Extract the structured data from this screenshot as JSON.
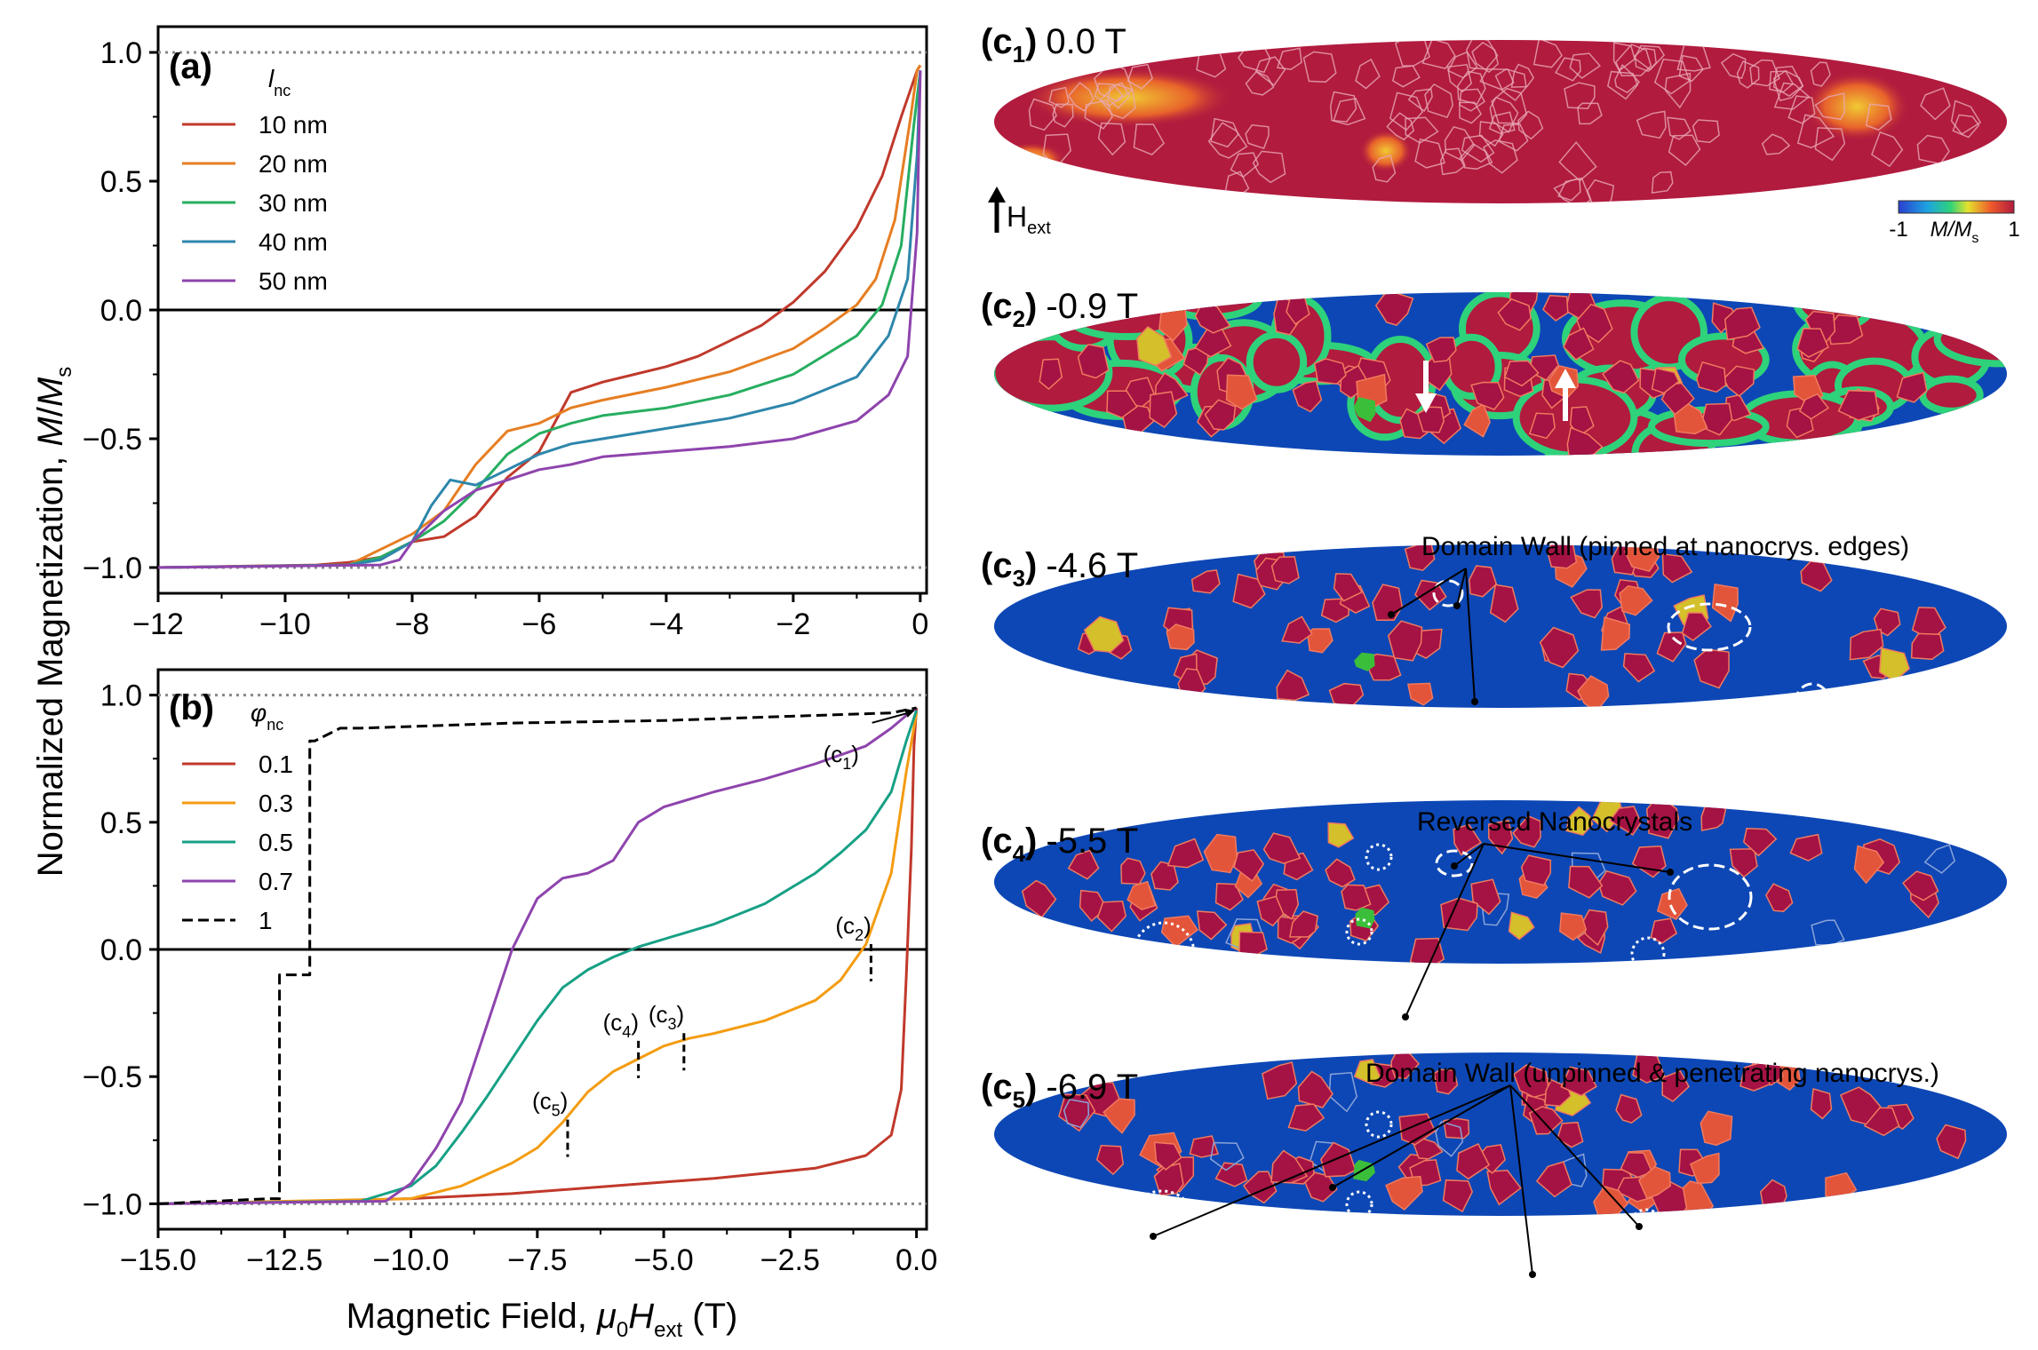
{
  "chart_data": [
    {
      "type": "line",
      "panel": "(a)",
      "legend_title": "l",
      "legend_title_sub": "nc",
      "legend_loc": "upper-left",
      "xlim": [
        -12,
        0.1
      ],
      "ylim": [
        -1.1,
        1.1
      ],
      "xticks": [
        -12,
        -10,
        -8,
        -6,
        -4,
        -2,
        0
      ],
      "xtick_labels": [
        "−12",
        "−10",
        "−8",
        "−6",
        "−4",
        "−2",
        "0"
      ],
      "yticks": [
        1.0,
        0.5,
        0.0,
        -0.5,
        -1.0
      ],
      "ytick_labels": [
        "1.0",
        "0.5",
        "0.0",
        "−0.5",
        "−1.0"
      ],
      "reference_lines": [
        1.0,
        -1.0
      ],
      "series": [
        {
          "name": "10 nm",
          "color": "#c0392b",
          "x": [
            -12,
            -9.5,
            -9,
            -8.5,
            -8,
            -7.5,
            -7,
            -6.5,
            -6,
            -5.5,
            -5,
            -4.5,
            -4,
            -3.5,
            -3,
            -2.5,
            -2,
            -1.5,
            -1,
            -0.6,
            -0.3,
            -0.05,
            0
          ],
          "y": [
            -1.0,
            -0.99,
            -0.98,
            -0.96,
            -0.9,
            -0.88,
            -0.8,
            -0.65,
            -0.55,
            -0.32,
            -0.28,
            -0.25,
            -0.22,
            -0.18,
            -0.12,
            -0.06,
            0.03,
            0.15,
            0.32,
            0.52,
            0.75,
            0.93,
            0.95
          ]
        },
        {
          "name": "20 nm",
          "color": "#e67e22",
          "x": [
            -12,
            -9,
            -8.5,
            -8,
            -7.5,
            -7,
            -6.5,
            -6,
            -5.5,
            -5,
            -4,
            -3,
            -2,
            -1.5,
            -1,
            -0.7,
            -0.4,
            -0.15,
            -0.05,
            0
          ],
          "y": [
            -1.0,
            -0.99,
            -0.93,
            -0.87,
            -0.78,
            -0.6,
            -0.47,
            -0.44,
            -0.38,
            -0.35,
            -0.3,
            -0.24,
            -0.15,
            -0.07,
            0.02,
            0.12,
            0.35,
            0.75,
            0.93,
            0.95
          ]
        },
        {
          "name": "30 nm",
          "color": "#27ae60",
          "x": [
            -12,
            -9,
            -8.5,
            -8,
            -7.5,
            -7,
            -6.5,
            -6,
            -5.5,
            -5,
            -4,
            -3,
            -2,
            -1,
            -0.6,
            -0.3,
            -0.1,
            0
          ],
          "y": [
            -1.0,
            -0.99,
            -0.96,
            -0.9,
            -0.82,
            -0.7,
            -0.56,
            -0.48,
            -0.44,
            -0.41,
            -0.38,
            -0.33,
            -0.25,
            -0.1,
            0.02,
            0.25,
            0.72,
            0.93
          ]
        },
        {
          "name": "40 nm",
          "color": "#2e86ab",
          "x": [
            -12,
            -9,
            -8.5,
            -8,
            -7.7,
            -7.4,
            -7,
            -6.5,
            -6,
            -5.5,
            -5,
            -4,
            -3,
            -2,
            -1,
            -0.5,
            -0.2,
            -0.05,
            0
          ],
          "y": [
            -1.0,
            -0.99,
            -0.97,
            -0.9,
            -0.76,
            -0.66,
            -0.68,
            -0.62,
            -0.56,
            -0.52,
            -0.5,
            -0.46,
            -0.42,
            -0.36,
            -0.26,
            -0.1,
            0.12,
            0.6,
            0.93
          ]
        },
        {
          "name": "50 nm",
          "color": "#8e44ad",
          "x": [
            -12,
            -8.5,
            -8.2,
            -8,
            -7.5,
            -7,
            -6.5,
            -6,
            -5.5,
            -5,
            -4,
            -3,
            -2,
            -1,
            -0.5,
            -0.2,
            -0.05,
            0
          ],
          "y": [
            -1.0,
            -0.99,
            -0.97,
            -0.9,
            -0.78,
            -0.7,
            -0.66,
            -0.62,
            -0.6,
            -0.57,
            -0.55,
            -0.53,
            -0.5,
            -0.43,
            -0.33,
            -0.18,
            0.3,
            0.93
          ]
        }
      ]
    },
    {
      "type": "line",
      "panel": "(b)",
      "legend_title": "φ",
      "legend_title_sub": "nc",
      "legend_loc": "upper-left",
      "xlim": [
        -15,
        0.2
      ],
      "ylim": [
        -1.1,
        1.1
      ],
      "xticks": [
        -15,
        -12.5,
        -10,
        -7.5,
        -5,
        -2.5,
        0
      ],
      "xtick_labels": [
        "−15.0",
        "−12.5",
        "−10.0",
        "−7.5",
        "−5.0",
        "−2.5",
        "0.0"
      ],
      "yticks": [
        1.0,
        0.5,
        0.0,
        -0.5,
        -1.0
      ],
      "ytick_labels": [
        "1.0",
        "0.5",
        "0.0",
        "−0.5",
        "−1.0"
      ],
      "xlabel": "Magnetic Field, μ0Hext (T)",
      "ylabel": "Normalized Magnetization, M/Ms",
      "reference_lines": [
        1.0,
        -1.0
      ],
      "series": [
        {
          "name": "0.1",
          "color": "#c0392b",
          "dash": false,
          "x": [
            -15,
            -12,
            -10,
            -8,
            -6,
            -4,
            -2,
            -1,
            -0.5,
            -0.3,
            -0.2,
            -0.1,
            -0.05,
            0
          ],
          "y": [
            -1.0,
            -0.99,
            -0.98,
            -0.96,
            -0.93,
            -0.9,
            -0.86,
            -0.81,
            -0.73,
            -0.55,
            -0.1,
            0.4,
            0.8,
            0.95
          ]
        },
        {
          "name": "0.3",
          "color": "#f39c12",
          "dash": false,
          "x": [
            -15,
            -10,
            -9,
            -8,
            -7.5,
            -7,
            -6.5,
            -6,
            -5.5,
            -5,
            -4.5,
            -4,
            -3,
            -2,
            -1.5,
            -1,
            -0.5,
            -0.2,
            0
          ],
          "y": [
            -1.0,
            -0.98,
            -0.93,
            -0.84,
            -0.78,
            -0.68,
            -0.56,
            -0.48,
            -0.43,
            -0.38,
            -0.35,
            -0.33,
            -0.28,
            -0.2,
            -0.12,
            0.02,
            0.3,
            0.7,
            0.93
          ]
        },
        {
          "name": "0.5",
          "color": "#16a085",
          "dash": false,
          "x": [
            -15,
            -11,
            -10,
            -9.5,
            -9,
            -8.5,
            -8,
            -7.5,
            -7,
            -6.5,
            -6,
            -5.5,
            -5,
            -4,
            -3,
            -2,
            -1.5,
            -1,
            -0.5,
            -0.2,
            0
          ],
          "y": [
            -1.0,
            -0.99,
            -0.93,
            -0.85,
            -0.72,
            -0.58,
            -0.43,
            -0.28,
            -0.15,
            -0.08,
            -0.03,
            0.01,
            0.04,
            0.1,
            0.18,
            0.3,
            0.38,
            0.47,
            0.62,
            0.82,
            0.94
          ]
        },
        {
          "name": "0.7",
          "color": "#8e44ad",
          "dash": false,
          "x": [
            -15,
            -10.5,
            -10,
            -9.5,
            -9,
            -8.5,
            -8,
            -7.5,
            -7,
            -6.5,
            -6,
            -5.5,
            -5,
            -4,
            -3,
            -2,
            -1,
            -0.5,
            -0.2,
            0
          ],
          "y": [
            -1.0,
            -0.99,
            -0.92,
            -0.78,
            -0.6,
            -0.3,
            0.0,
            0.2,
            0.28,
            0.3,
            0.35,
            0.5,
            0.56,
            0.62,
            0.67,
            0.73,
            0.8,
            0.87,
            0.92,
            0.95
          ]
        },
        {
          "name": "1",
          "color": "#000000",
          "dash": true,
          "x": [
            -15,
            -12.8,
            -12.6,
            -12.6,
            -12.0,
            -12.0,
            -11.9,
            -11.9,
            -11.6,
            -11.4,
            -11.0,
            -8,
            -5,
            -2,
            -0.5,
            0
          ],
          "y": [
            -1.0,
            -0.98,
            -0.98,
            -0.1,
            -0.1,
            0.82,
            0.82,
            0.82,
            0.85,
            0.87,
            0.87,
            0.89,
            0.9,
            0.92,
            0.93,
            0.95
          ]
        }
      ],
      "annotations": [
        {
          "label": "(c",
          "sub": "1",
          "x": 0,
          "y": 0.94
        },
        {
          "label": "(c",
          "sub": "2",
          "x": -0.9,
          "y": 0.0
        },
        {
          "label": "(c",
          "sub": "3",
          "x": -4.6,
          "y": -0.35
        },
        {
          "label": "(c",
          "sub": "4",
          "x": -5.5,
          "y": -0.38
        },
        {
          "label": "(c",
          "sub": "5",
          "x": -6.9,
          "y": -0.69
        }
      ]
    }
  ],
  "snapshots": [
    {
      "label": "(c",
      "sub": "1",
      "field": "0.0 T"
    },
    {
      "label": "(c",
      "sub": "2",
      "field": "-0.9 T"
    },
    {
      "label": "(c",
      "sub": "3",
      "field": "-4.6 T"
    },
    {
      "label": "(c",
      "sub": "4",
      "field": "-5.5 T"
    },
    {
      "label": "(c",
      "sub": "5",
      "field": "-6.9 T"
    }
  ],
  "annotations_right": {
    "c3": "Domain Wall (pinned at nanocrys. edges)",
    "c4": "Reversed Nanocrystals",
    "c5": "Domain Wall (unpinned & penetrating nanocrys.)"
  },
  "hext_label": "H",
  "hext_sub": "ext",
  "colorbar": {
    "min": "-1",
    "max": "1",
    "label": "M/M",
    "label_sub": "s"
  },
  "axis_labels": {
    "ylabel_main": "Normalized Magnetization, ",
    "ylabel_M": "M",
    "ylabel_slash": "/",
    "ylabel_Ms": "M",
    "ylabel_sub": "s",
    "xlabel_main": "Magnetic Field, ",
    "xlabel_mu": "μ",
    "xlabel_0": "0",
    "xlabel_H": "H",
    "xlabel_ext": "ext",
    "xlabel_unit": " (T)"
  },
  "colors": {
    "ellipse_bg_c1": "#b11b3e",
    "ellipse_bg_blue": "#0d47b5",
    "grain_red": "#a51244",
    "grain_orange": "#e3553a",
    "grain_yellow": "#d4c02a",
    "grain_green": "#3bbf3b"
  }
}
